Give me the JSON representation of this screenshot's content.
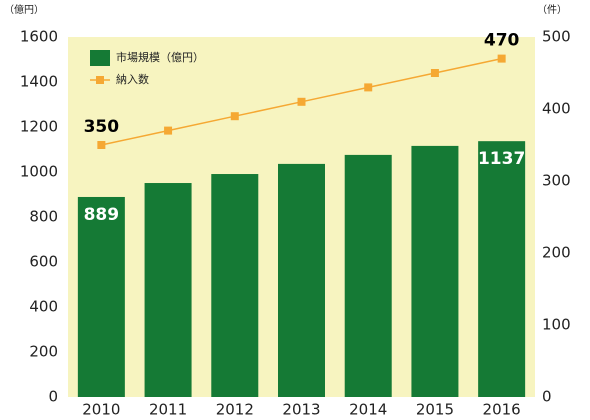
{
  "chart_data": {
    "type": "bar-line",
    "y_unit": "（億円）",
    "y2_unit": "（件）",
    "categories": [
      "2010",
      "2011",
      "2012",
      "2013",
      "2014",
      "2015",
      "2016"
    ],
    "series": [
      {
        "name": "市場規模（億円）",
        "type": "bar",
        "color": "#157a35",
        "label_color": "#ffffff",
        "values": [
          889,
          951,
          991,
          1036,
          1076,
          1116,
          1137
        ],
        "value_labels": [
          "889",
          null,
          null,
          null,
          null,
          null,
          "1137"
        ]
      },
      {
        "name": "納入数",
        "type": "line",
        "axis": "y2",
        "color": "#f5a833",
        "label_color": "#000000",
        "values": [
          350,
          370,
          390,
          410,
          430,
          450,
          470
        ],
        "value_labels": [
          "350",
          null,
          null,
          null,
          null,
          null,
          "470"
        ]
      }
    ],
    "ylim": [
      0,
      1600
    ],
    "yticks": [
      0,
      200,
      400,
      600,
      800,
      1000,
      1200,
      1400,
      1600
    ],
    "y2lim": [
      0,
      500
    ],
    "y2ticks": [
      0,
      100,
      200,
      300,
      400,
      500
    ],
    "plot_background": "#f7f4c0"
  }
}
